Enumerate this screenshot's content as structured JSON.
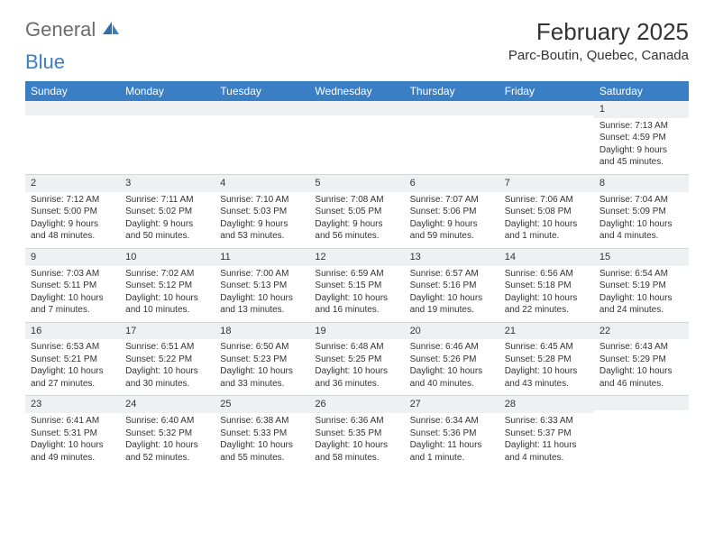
{
  "logo": {
    "text1": "General",
    "text2": "Blue"
  },
  "title": "February 2025",
  "location": "Parc-Boutin, Quebec, Canada",
  "colors": {
    "header_bg": "#3a7fc4",
    "header_text": "#ffffff",
    "daynum_bg": "#eef0f2",
    "border": "#d3d6da",
    "text": "#333333",
    "logo_gray": "#6b6b6b",
    "logo_blue": "#3a7fc4"
  },
  "day_names": [
    "Sunday",
    "Monday",
    "Tuesday",
    "Wednesday",
    "Thursday",
    "Friday",
    "Saturday"
  ],
  "weeks": [
    [
      null,
      null,
      null,
      null,
      null,
      null,
      {
        "n": "1",
        "sr": "7:13 AM",
        "ss": "4:59 PM",
        "dl": "9 hours and 45 minutes."
      }
    ],
    [
      {
        "n": "2",
        "sr": "7:12 AM",
        "ss": "5:00 PM",
        "dl": "9 hours and 48 minutes."
      },
      {
        "n": "3",
        "sr": "7:11 AM",
        "ss": "5:02 PM",
        "dl": "9 hours and 50 minutes."
      },
      {
        "n": "4",
        "sr": "7:10 AM",
        "ss": "5:03 PM",
        "dl": "9 hours and 53 minutes."
      },
      {
        "n": "5",
        "sr": "7:08 AM",
        "ss": "5:05 PM",
        "dl": "9 hours and 56 minutes."
      },
      {
        "n": "6",
        "sr": "7:07 AM",
        "ss": "5:06 PM",
        "dl": "9 hours and 59 minutes."
      },
      {
        "n": "7",
        "sr": "7:06 AM",
        "ss": "5:08 PM",
        "dl": "10 hours and 1 minute."
      },
      {
        "n": "8",
        "sr": "7:04 AM",
        "ss": "5:09 PM",
        "dl": "10 hours and 4 minutes."
      }
    ],
    [
      {
        "n": "9",
        "sr": "7:03 AM",
        "ss": "5:11 PM",
        "dl": "10 hours and 7 minutes."
      },
      {
        "n": "10",
        "sr": "7:02 AM",
        "ss": "5:12 PM",
        "dl": "10 hours and 10 minutes."
      },
      {
        "n": "11",
        "sr": "7:00 AM",
        "ss": "5:13 PM",
        "dl": "10 hours and 13 minutes."
      },
      {
        "n": "12",
        "sr": "6:59 AM",
        "ss": "5:15 PM",
        "dl": "10 hours and 16 minutes."
      },
      {
        "n": "13",
        "sr": "6:57 AM",
        "ss": "5:16 PM",
        "dl": "10 hours and 19 minutes."
      },
      {
        "n": "14",
        "sr": "6:56 AM",
        "ss": "5:18 PM",
        "dl": "10 hours and 22 minutes."
      },
      {
        "n": "15",
        "sr": "6:54 AM",
        "ss": "5:19 PM",
        "dl": "10 hours and 24 minutes."
      }
    ],
    [
      {
        "n": "16",
        "sr": "6:53 AM",
        "ss": "5:21 PM",
        "dl": "10 hours and 27 minutes."
      },
      {
        "n": "17",
        "sr": "6:51 AM",
        "ss": "5:22 PM",
        "dl": "10 hours and 30 minutes."
      },
      {
        "n": "18",
        "sr": "6:50 AM",
        "ss": "5:23 PM",
        "dl": "10 hours and 33 minutes."
      },
      {
        "n": "19",
        "sr": "6:48 AM",
        "ss": "5:25 PM",
        "dl": "10 hours and 36 minutes."
      },
      {
        "n": "20",
        "sr": "6:46 AM",
        "ss": "5:26 PM",
        "dl": "10 hours and 40 minutes."
      },
      {
        "n": "21",
        "sr": "6:45 AM",
        "ss": "5:28 PM",
        "dl": "10 hours and 43 minutes."
      },
      {
        "n": "22",
        "sr": "6:43 AM",
        "ss": "5:29 PM",
        "dl": "10 hours and 46 minutes."
      }
    ],
    [
      {
        "n": "23",
        "sr": "6:41 AM",
        "ss": "5:31 PM",
        "dl": "10 hours and 49 minutes."
      },
      {
        "n": "24",
        "sr": "6:40 AM",
        "ss": "5:32 PM",
        "dl": "10 hours and 52 minutes."
      },
      {
        "n": "25",
        "sr": "6:38 AM",
        "ss": "5:33 PM",
        "dl": "10 hours and 55 minutes."
      },
      {
        "n": "26",
        "sr": "6:36 AM",
        "ss": "5:35 PM",
        "dl": "10 hours and 58 minutes."
      },
      {
        "n": "27",
        "sr": "6:34 AM",
        "ss": "5:36 PM",
        "dl": "11 hours and 1 minute."
      },
      {
        "n": "28",
        "sr": "6:33 AM",
        "ss": "5:37 PM",
        "dl": "11 hours and 4 minutes."
      },
      null
    ]
  ],
  "labels": {
    "sunrise": "Sunrise:",
    "sunset": "Sunset:",
    "daylight": "Daylight:"
  }
}
